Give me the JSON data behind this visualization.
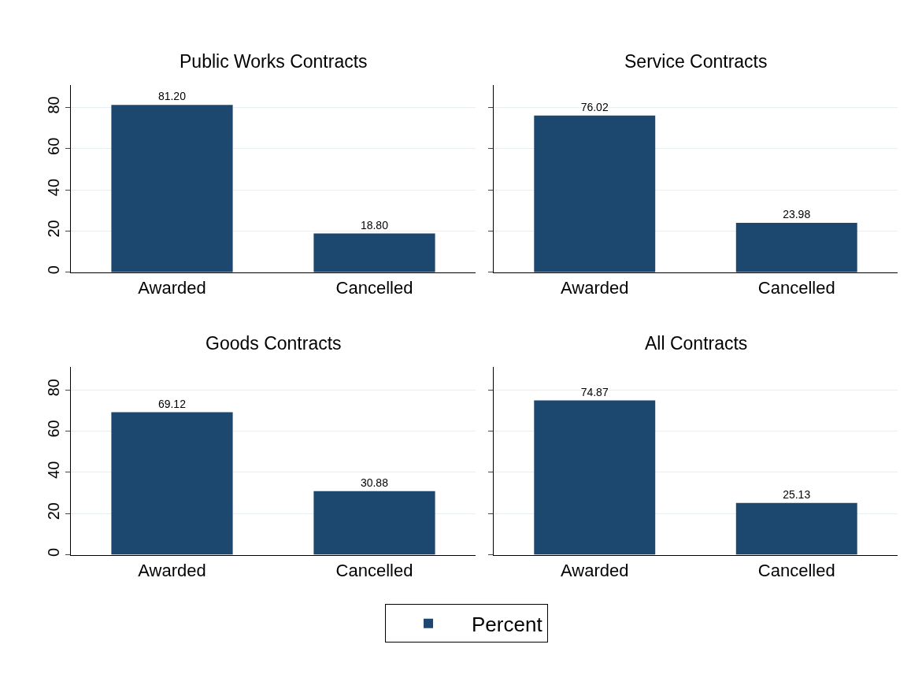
{
  "chart_data": [
    {
      "type": "bar",
      "title": "Public Works Contracts",
      "categories": [
        "Awarded",
        "Cancelled"
      ],
      "series": [
        {
          "name": "Percent",
          "color": "#1c476f",
          "values": [
            81.2,
            18.8
          ],
          "value_labels": [
            "81.20",
            "18.80"
          ]
        }
      ],
      "ylim": [
        0,
        91
      ],
      "yticks": [
        0,
        20,
        40,
        60,
        80
      ],
      "grid": "y",
      "legend": "bottom"
    },
    {
      "type": "bar",
      "title": "Service Contracts",
      "categories": [
        "Awarded",
        "Cancelled"
      ],
      "series": [
        {
          "name": "Percent",
          "color": "#1c476f",
          "values": [
            76.02,
            23.98
          ],
          "value_labels": [
            "76.02",
            "23.98"
          ]
        }
      ],
      "ylim": [
        0,
        91
      ],
      "yticks": [
        0,
        20,
        40,
        60,
        80
      ],
      "grid": "y",
      "tick_labels": "x",
      "legend": "bottom"
    },
    {
      "type": "bar",
      "title": "Goods Contracts",
      "categories": [
        "Awarded",
        "Cancelled"
      ],
      "series": [
        {
          "name": "Percent",
          "color": "#1c476f",
          "values": [
            69.12,
            30.88
          ],
          "value_labels": [
            "69.12",
            "30.88"
          ]
        }
      ],
      "ylim": [
        0,
        91
      ],
      "yticks": [
        0,
        20,
        40,
        60,
        80
      ],
      "grid": "y",
      "legend": "bottom"
    },
    {
      "type": "bar",
      "title": "All Contracts",
      "categories": [
        "Awarded",
        "Cancelled"
      ],
      "series": [
        {
          "name": "Percent",
          "color": "#1c476f",
          "values": [
            74.87,
            25.13
          ],
          "value_labels": [
            "74.87",
            "25.13"
          ]
        }
      ],
      "ylim": [
        0,
        91
      ],
      "yticks": [
        0,
        20,
        40,
        60,
        80
      ],
      "grid": "y",
      "tick_labels": "x",
      "legend": "bottom"
    }
  ]
}
